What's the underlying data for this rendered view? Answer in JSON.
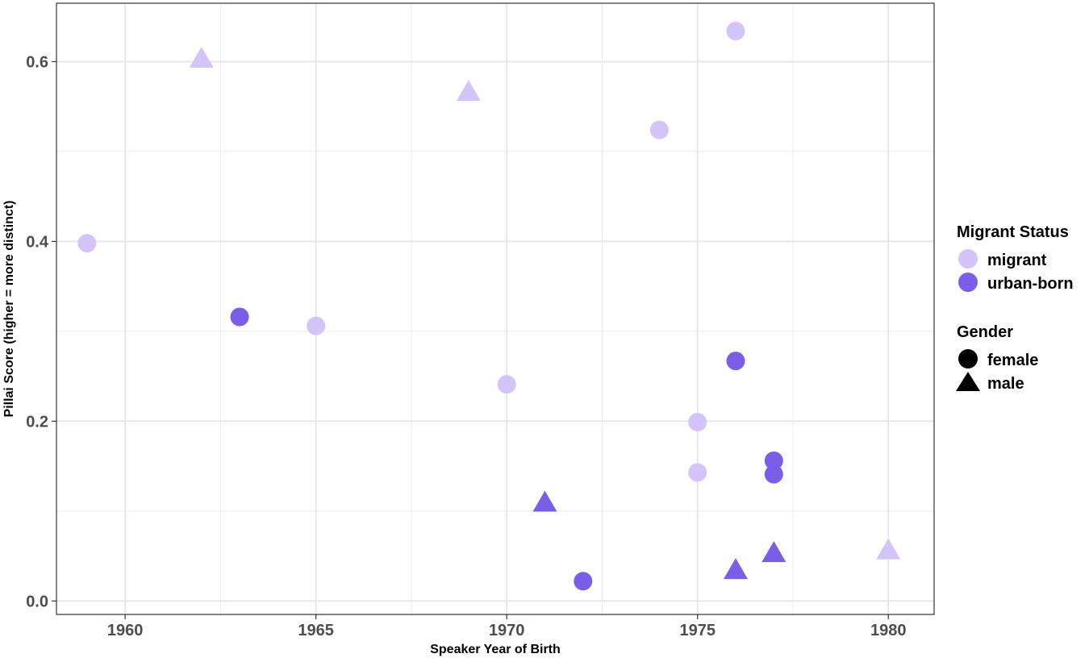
{
  "chart_data": {
    "type": "scatter",
    "xlabel": "Speaker Year of Birth",
    "ylabel": "Pillai Score (higher = more distinct)",
    "xlim": [
      1958.2,
      1981.2
    ],
    "ylim": [
      -0.015,
      0.665
    ],
    "x_ticks": [
      1960,
      1965,
      1970,
      1975,
      1980
    ],
    "y_ticks": [
      0.0,
      0.2,
      0.4,
      0.6
    ],
    "x_tick_labels": [
      "1960",
      "1965",
      "1970",
      "1975",
      "1980"
    ],
    "y_tick_labels": [
      "0.0",
      "0.2",
      "0.4",
      "0.6"
    ],
    "grid": true,
    "legend_position": "right",
    "colors": {
      "migrant": "#d3c5fa",
      "urban-born": "#7a5ee8"
    },
    "legend": {
      "color_title": "Migrant Status",
      "color_entries": [
        {
          "key": "migrant",
          "label": "migrant"
        },
        {
          "key": "urban-born",
          "label": "urban-born"
        }
      ],
      "shape_title": "Gender",
      "shape_entries": [
        {
          "key": "female",
          "label": "female",
          "shape": "circle"
        },
        {
          "key": "male",
          "label": "male",
          "shape": "triangle"
        }
      ]
    },
    "points": [
      {
        "x": 1959,
        "y": 0.398,
        "status": "migrant",
        "gender": "female"
      },
      {
        "x": 1962,
        "y": 0.605,
        "status": "migrant",
        "gender": "male"
      },
      {
        "x": 1963,
        "y": 0.316,
        "status": "urban-born",
        "gender": "female"
      },
      {
        "x": 1965,
        "y": 0.306,
        "status": "migrant",
        "gender": "female"
      },
      {
        "x": 1969,
        "y": 0.568,
        "status": "migrant",
        "gender": "male"
      },
      {
        "x": 1970,
        "y": 0.241,
        "status": "migrant",
        "gender": "female"
      },
      {
        "x": 1971,
        "y": 0.111,
        "status": "urban-born",
        "gender": "male"
      },
      {
        "x": 1972,
        "y": 0.022,
        "status": "urban-born",
        "gender": "female"
      },
      {
        "x": 1974,
        "y": 0.524,
        "status": "migrant",
        "gender": "female"
      },
      {
        "x": 1975,
        "y": 0.199,
        "status": "migrant",
        "gender": "female"
      },
      {
        "x": 1975,
        "y": 0.143,
        "status": "migrant",
        "gender": "female"
      },
      {
        "x": 1976,
        "y": 0.634,
        "status": "migrant",
        "gender": "female"
      },
      {
        "x": 1976,
        "y": 0.267,
        "status": "urban-born",
        "gender": "female"
      },
      {
        "x": 1976,
        "y": 0.036,
        "status": "urban-born",
        "gender": "male"
      },
      {
        "x": 1977,
        "y": 0.156,
        "status": "urban-born",
        "gender": "female"
      },
      {
        "x": 1977,
        "y": 0.141,
        "status": "urban-born",
        "gender": "female"
      },
      {
        "x": 1977,
        "y": 0.055,
        "status": "urban-born",
        "gender": "male"
      },
      {
        "x": 1980,
        "y": 0.058,
        "status": "migrant",
        "gender": "male"
      }
    ]
  }
}
